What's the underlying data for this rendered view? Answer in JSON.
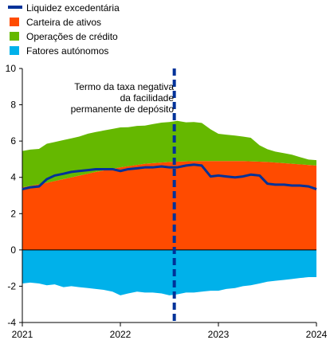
{
  "chart_data": {
    "type": "area",
    "ylim": [
      -4,
      10
    ],
    "y_ticks": [
      -4,
      -2,
      0,
      2,
      4,
      6,
      8,
      10
    ],
    "x_ticks": [
      "2021",
      "2022",
      "2023",
      "2024"
    ],
    "x_range": [
      2021.0,
      2024.0
    ],
    "grid": false,
    "legend_position": "top-left",
    "annotation": {
      "lines": [
        "Termo da taxa negativa",
        "da facilidade",
        "permanente de depósito"
      ],
      "x": 2022.55
    },
    "series": [
      {
        "name": "Liquidez excedentária",
        "kind": "line",
        "color": "#003299",
        "x": [
          2021.0,
          2021.08,
          2021.17,
          2021.25,
          2021.33,
          2021.42,
          2021.5,
          2021.58,
          2021.67,
          2021.75,
          2021.83,
          2021.92,
          2022.0,
          2022.08,
          2022.17,
          2022.25,
          2022.33,
          2022.42,
          2022.5,
          2022.58,
          2022.67,
          2022.75,
          2022.83,
          2022.92,
          2023.0,
          2023.08,
          2023.17,
          2023.25,
          2023.33,
          2023.42,
          2023.5,
          2023.58,
          2023.67,
          2023.75,
          2023.83,
          2023.92,
          2024.0
        ],
        "values": [
          3.35,
          3.45,
          3.5,
          3.9,
          4.1,
          4.2,
          4.3,
          4.35,
          4.4,
          4.45,
          4.45,
          4.45,
          4.35,
          4.45,
          4.5,
          4.55,
          4.55,
          4.6,
          4.55,
          4.55,
          4.65,
          4.7,
          4.65,
          4.05,
          4.1,
          4.05,
          4.0,
          4.05,
          4.15,
          4.1,
          3.65,
          3.6,
          3.6,
          3.55,
          3.55,
          3.5,
          3.35
        ]
      },
      {
        "name": "Carteira de ativos",
        "kind": "area",
        "color": "#ff4b00",
        "x": [
          2021.0,
          2021.25,
          2021.5,
          2021.75,
          2022.0,
          2022.25,
          2022.5,
          2022.75,
          2023.0,
          2023.25,
          2023.5,
          2023.75,
          2024.0
        ],
        "values": [
          3.45,
          3.7,
          4.0,
          4.3,
          4.55,
          4.75,
          4.85,
          4.9,
          4.9,
          4.9,
          4.85,
          4.75,
          4.65
        ]
      },
      {
        "name": "Operações de crédito",
        "kind": "area",
        "color": "#65b800",
        "x": [
          2021.0,
          2021.08,
          2021.17,
          2021.25,
          2021.33,
          2021.42,
          2021.5,
          2021.58,
          2021.67,
          2021.75,
          2021.83,
          2021.92,
          2022.0,
          2022.08,
          2022.17,
          2022.25,
          2022.33,
          2022.42,
          2022.5,
          2022.58,
          2022.67,
          2022.75,
          2022.83,
          2022.92,
          2023.0,
          2023.08,
          2023.17,
          2023.25,
          2023.33,
          2023.42,
          2023.5,
          2023.58,
          2023.67,
          2023.75,
          2023.83,
          2023.92,
          2024.0
        ],
        "values": [
          2.0,
          2.0,
          1.95,
          2.15,
          2.15,
          2.15,
          2.15,
          2.15,
          2.2,
          2.2,
          2.2,
          2.2,
          2.2,
          2.15,
          2.15,
          2.1,
          2.15,
          2.2,
          2.2,
          2.25,
          2.15,
          2.15,
          2.1,
          1.75,
          1.5,
          1.45,
          1.4,
          1.35,
          1.3,
          0.9,
          0.7,
          0.6,
          0.55,
          0.5,
          0.4,
          0.3,
          0.3
        ]
      },
      {
        "name": "Fatores autónomos",
        "kind": "area",
        "color": "#00b1ea",
        "x": [
          2021.0,
          2021.08,
          2021.17,
          2021.25,
          2021.33,
          2021.42,
          2021.5,
          2021.58,
          2021.67,
          2021.75,
          2021.83,
          2021.92,
          2022.0,
          2022.08,
          2022.17,
          2022.25,
          2022.33,
          2022.42,
          2022.5,
          2022.58,
          2022.67,
          2022.75,
          2022.83,
          2022.92,
          2023.0,
          2023.08,
          2023.17,
          2023.25,
          2023.33,
          2023.42,
          2023.5,
          2023.58,
          2023.67,
          2023.75,
          2023.83,
          2023.92,
          2024.0
        ],
        "values": [
          -1.85,
          -1.8,
          -1.85,
          -1.95,
          -1.9,
          -2.05,
          -2.0,
          -2.05,
          -2.1,
          -2.15,
          -2.2,
          -2.3,
          -2.5,
          -2.4,
          -2.3,
          -2.35,
          -2.35,
          -2.4,
          -2.5,
          -2.45,
          -2.35,
          -2.35,
          -2.3,
          -2.25,
          -2.25,
          -2.15,
          -2.1,
          -2.0,
          -1.95,
          -1.85,
          -1.75,
          -1.7,
          -1.65,
          -1.6,
          -1.55,
          -1.5,
          -1.5
        ]
      }
    ]
  }
}
